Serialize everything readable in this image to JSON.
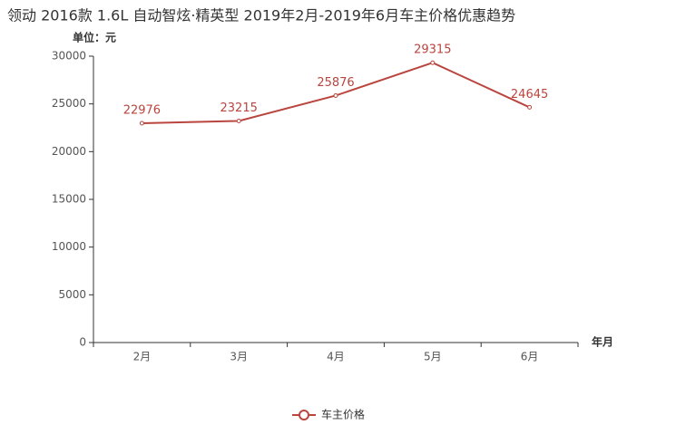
{
  "chart_data": {
    "type": "line",
    "title": "领动 2016款 1.6L 自动智炫·精英型 2019年2月-2019年6月车主价格优惠趋势",
    "y_axis_label": "单位：元",
    "x_axis_label": "年月",
    "categories": [
      "2月",
      "3月",
      "4月",
      "5月",
      "6月"
    ],
    "series": [
      {
        "name": "车主价格",
        "color": "#b9453e",
        "values": [
          22976,
          23215,
          25876,
          29315,
          24645
        ]
      }
    ],
    "ylim": [
      0,
      30000
    ],
    "yticks": [
      0,
      5000,
      10000,
      15000,
      20000,
      25000,
      30000
    ],
    "legend": "bottom"
  }
}
